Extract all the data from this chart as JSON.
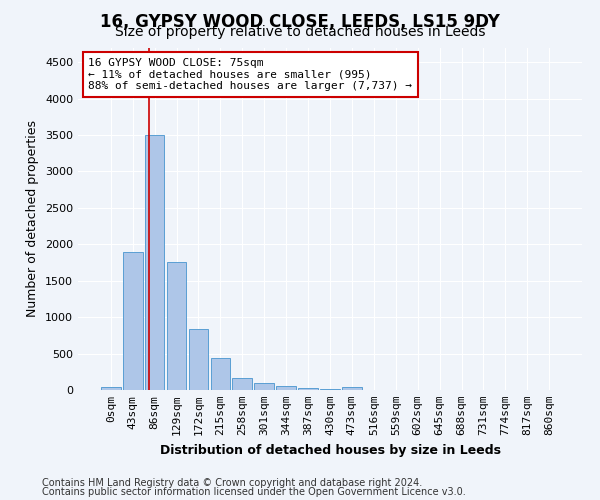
{
  "title": "16, GYPSY WOOD CLOSE, LEEDS, LS15 9DY",
  "subtitle": "Size of property relative to detached houses in Leeds",
  "xlabel": "Distribution of detached houses by size in Leeds",
  "ylabel": "Number of detached properties",
  "bar_color": "#aec6e8",
  "bar_edge_color": "#5a9fd4",
  "categories": [
    "0sqm",
    "43sqm",
    "86sqm",
    "129sqm",
    "172sqm",
    "215sqm",
    "258sqm",
    "301sqm",
    "344sqm",
    "387sqm",
    "430sqm",
    "473sqm",
    "516sqm",
    "559sqm",
    "602sqm",
    "645sqm",
    "688sqm",
    "731sqm",
    "774sqm",
    "817sqm",
    "860sqm"
  ],
  "values": [
    40,
    1900,
    3500,
    1760,
    840,
    440,
    170,
    100,
    55,
    30,
    10,
    45,
    0,
    0,
    0,
    0,
    0,
    0,
    0,
    0,
    0
  ],
  "ylim": [
    0,
    4700
  ],
  "yticks": [
    0,
    500,
    1000,
    1500,
    2000,
    2500,
    3000,
    3500,
    4000,
    4500
  ],
  "property_line_x": 1.76,
  "annotation_text": "16 GYPSY WOOD CLOSE: 75sqm\n← 11% of detached houses are smaller (995)\n88% of semi-detached houses are larger (7,737) →",
  "annotation_box_color": "#ffffff",
  "annotation_box_edge": "#cc0000",
  "vline_color": "#cc0000",
  "footer_line1": "Contains HM Land Registry data © Crown copyright and database right 2024.",
  "footer_line2": "Contains public sector information licensed under the Open Government Licence v3.0.",
  "background_color": "#f0f4fa",
  "grid_color": "#ffffff",
  "title_fontsize": 12,
  "subtitle_fontsize": 10,
  "axis_label_fontsize": 9,
  "tick_fontsize": 8,
  "footer_fontsize": 7
}
